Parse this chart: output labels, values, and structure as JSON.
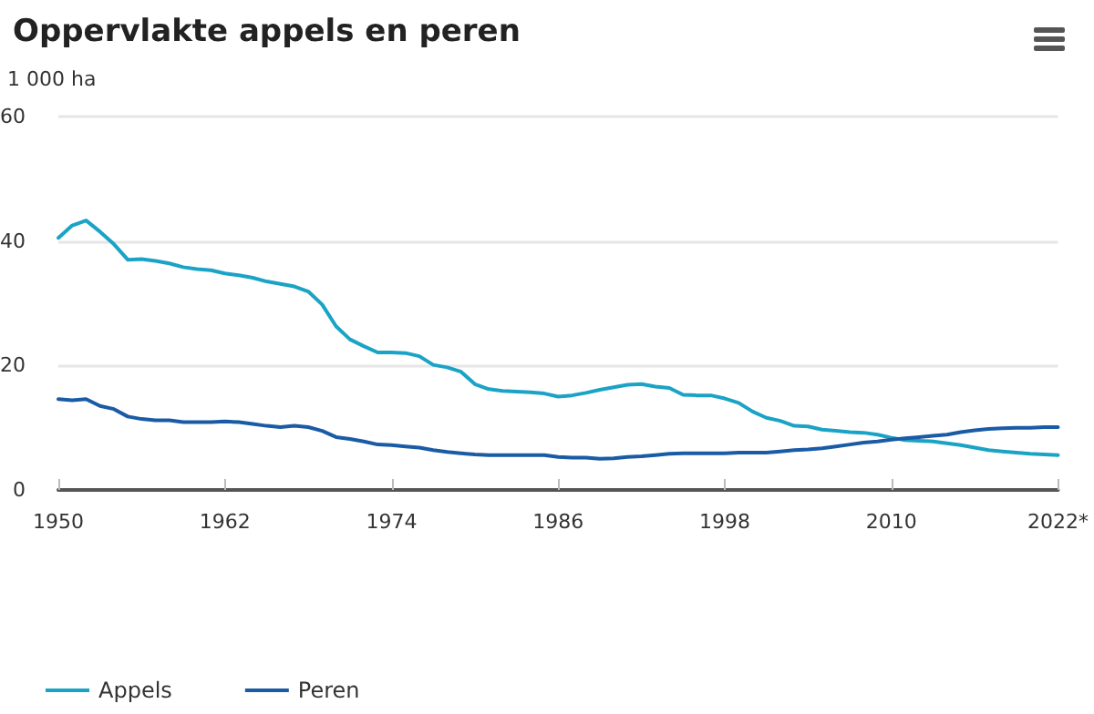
{
  "chart_data": {
    "type": "line",
    "title": "Oppervlakte appels en peren",
    "ylabel": "1 000 ha",
    "x": [
      1950,
      1951,
      1952,
      1953,
      1954,
      1955,
      1956,
      1957,
      1958,
      1959,
      1960,
      1961,
      1962,
      1963,
      1964,
      1965,
      1966,
      1967,
      1968,
      1969,
      1970,
      1971,
      1972,
      1973,
      1974,
      1975,
      1976,
      1977,
      1978,
      1979,
      1980,
      1981,
      1982,
      1983,
      1984,
      1985,
      1986,
      1987,
      1988,
      1989,
      1990,
      1991,
      1992,
      1993,
      1994,
      1995,
      1996,
      1997,
      1998,
      1999,
      2000,
      2001,
      2002,
      2003,
      2004,
      2005,
      2006,
      2007,
      2008,
      2009,
      2010,
      2011,
      2012,
      2013,
      2014,
      2015,
      2016,
      2017,
      2018,
      2019,
      2020,
      2021,
      2022
    ],
    "series": [
      {
        "name": "Appels",
        "color": "#1ba3c6",
        "values": [
          40.5,
          42.5,
          43.3,
          41.5,
          39.5,
          37.0,
          37.1,
          36.8,
          36.4,
          35.8,
          35.5,
          35.3,
          34.8,
          34.5,
          34.1,
          33.5,
          33.1,
          32.7,
          31.9,
          29.8,
          26.3,
          24.2,
          23.1,
          22.1,
          22.1,
          22.0,
          21.5,
          20.1,
          19.7,
          19.0,
          17.0,
          16.2,
          15.9,
          15.8,
          15.7,
          15.5,
          15.0,
          15.2,
          15.6,
          16.1,
          16.5,
          16.9,
          17.0,
          16.6,
          16.4,
          15.3,
          15.2,
          15.2,
          14.7,
          14.0,
          12.6,
          11.6,
          11.1,
          10.3,
          10.2,
          9.7,
          9.5,
          9.3,
          9.2,
          8.9,
          8.4,
          8.0,
          7.9,
          7.8,
          7.5,
          7.2,
          6.8,
          6.4,
          6.2,
          6.0,
          5.8,
          5.7,
          5.6
        ]
      },
      {
        "name": "Peren",
        "color": "#1a5ba6",
        "values": [
          14.6,
          14.4,
          14.6,
          13.5,
          13.0,
          11.8,
          11.4,
          11.2,
          11.2,
          10.9,
          10.9,
          10.9,
          11.0,
          10.9,
          10.6,
          10.3,
          10.1,
          10.3,
          10.1,
          9.5,
          8.5,
          8.2,
          7.8,
          7.3,
          7.2,
          7.0,
          6.8,
          6.4,
          6.1,
          5.9,
          5.7,
          5.6,
          5.6,
          5.6,
          5.6,
          5.6,
          5.3,
          5.2,
          5.2,
          5.0,
          5.1,
          5.3,
          5.4,
          5.6,
          5.8,
          5.9,
          5.9,
          5.9,
          5.9,
          6.0,
          6.0,
          6.0,
          6.2,
          6.4,
          6.5,
          6.7,
          7.0,
          7.3,
          7.6,
          7.8,
          8.1,
          8.3,
          8.5,
          8.7,
          8.9,
          9.3,
          9.6,
          9.8,
          9.9,
          10.0,
          10.0,
          10.1,
          10.1
        ]
      }
    ],
    "xlim": [
      1950,
      2022
    ],
    "xticks": [
      1950,
      1962,
      1974,
      1986,
      1998,
      2010,
      {
        "value": 2022,
        "label": "2022*"
      }
    ],
    "ylim": [
      0,
      60
    ],
    "yticks": [
      0,
      20,
      40,
      60
    ],
    "grid": "y",
    "legend": "bottom left",
    "marker": "none",
    "line_style": "solid"
  }
}
